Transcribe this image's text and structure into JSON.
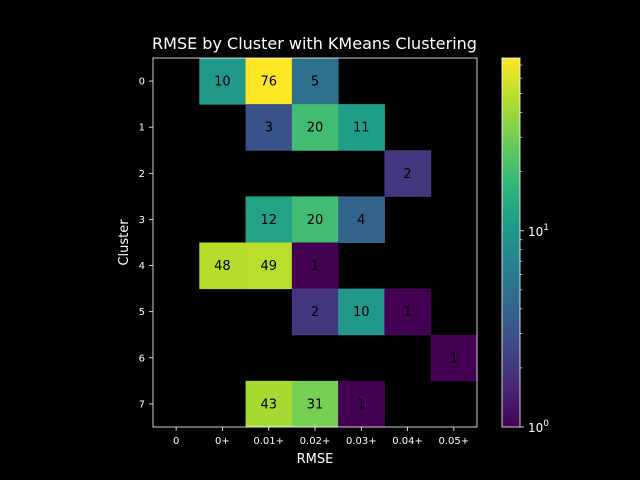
{
  "chart_data": {
    "type": "heatmap",
    "title": "RMSE by Cluster with KMeans Clustering",
    "xlabel": "RMSE",
    "ylabel": "Cluster",
    "x_categories": [
      "0",
      "0+",
      "0.01+",
      "0.02+",
      "0.03+",
      "0.04+",
      "0.05+"
    ],
    "y_categories": [
      "0",
      "1",
      "2",
      "3",
      "4",
      "5",
      "6",
      "7"
    ],
    "cells": [
      {
        "row": "0",
        "col": "0+",
        "value": 10
      },
      {
        "row": "0",
        "col": "0.01+",
        "value": 76
      },
      {
        "row": "0",
        "col": "0.02+",
        "value": 5
      },
      {
        "row": "1",
        "col": "0.01+",
        "value": 3
      },
      {
        "row": "1",
        "col": "0.02+",
        "value": 20
      },
      {
        "row": "1",
        "col": "0.03+",
        "value": 11
      },
      {
        "row": "2",
        "col": "0.04+",
        "value": 2
      },
      {
        "row": "3",
        "col": "0.01+",
        "value": 12
      },
      {
        "row": "3",
        "col": "0.02+",
        "value": 20
      },
      {
        "row": "3",
        "col": "0.03+",
        "value": 4
      },
      {
        "row": "4",
        "col": "0+",
        "value": 48
      },
      {
        "row": "4",
        "col": "0.01+",
        "value": 49
      },
      {
        "row": "4",
        "col": "0.02+",
        "value": 1
      },
      {
        "row": "5",
        "col": "0.02+",
        "value": 2
      },
      {
        "row": "5",
        "col": "0.03+",
        "value": 10
      },
      {
        "row": "5",
        "col": "0.04+",
        "value": 1
      },
      {
        "row": "6",
        "col": "0.05+",
        "value": 1
      },
      {
        "row": "7",
        "col": "0.01+",
        "value": 43
      },
      {
        "row": "7",
        "col": "0.02+",
        "value": 31
      },
      {
        "row": "7",
        "col": "0.03+",
        "value": 1
      }
    ],
    "colorbar": {
      "scale": "log",
      "colormap": "viridis",
      "range": [
        1,
        76
      ],
      "ticks": [
        {
          "value": 1,
          "base": "10",
          "exp": "0"
        },
        {
          "value": 10,
          "base": "10",
          "exp": "1"
        }
      ]
    },
    "background_color": "#000000",
    "grid": false
  }
}
